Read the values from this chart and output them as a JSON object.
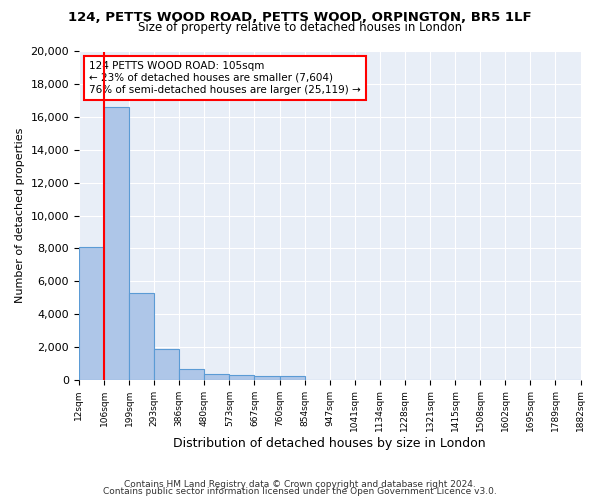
{
  "title_line1": "124, PETTS WOOD ROAD, PETTS WOOD, ORPINGTON, BR5 1LF",
  "title_line2": "Size of property relative to detached houses in London",
  "xlabel": "Distribution of detached houses by size in London",
  "ylabel": "Number of detached properties",
  "bar_color": "#aec6e8",
  "bar_edge_color": "#5b9bd5",
  "subject_line_color": "red",
  "annotation_text": "124 PETTS WOOD ROAD: 105sqm\n← 23% of detached houses are smaller (7,604)\n76% of semi-detached houses are larger (25,119) →",
  "footer_line1": "Contains HM Land Registry data © Crown copyright and database right 2024.",
  "footer_line2": "Contains public sector information licensed under the Open Government Licence v3.0.",
  "bin_labels": [
    "12sqm",
    "106sqm",
    "199sqm",
    "293sqm",
    "386sqm",
    "480sqm",
    "573sqm",
    "667sqm",
    "760sqm",
    "854sqm",
    "947sqm",
    "1041sqm",
    "1134sqm",
    "1228sqm",
    "1321sqm",
    "1415sqm",
    "1508sqm",
    "1602sqm",
    "1695sqm",
    "1789sqm",
    "1882sqm"
  ],
  "bar_heights": [
    8100,
    16600,
    5300,
    1850,
    650,
    340,
    270,
    210,
    200,
    0,
    0,
    0,
    0,
    0,
    0,
    0,
    0,
    0,
    0,
    0
  ],
  "ylim": [
    0,
    20000
  ],
  "yticks": [
    0,
    2000,
    4000,
    6000,
    8000,
    10000,
    12000,
    14000,
    16000,
    18000,
    20000
  ],
  "background_color": "#e8eef7",
  "grid_color": "#ffffff",
  "annotation_box_color": "#ffffff",
  "annotation_box_edge": "red"
}
